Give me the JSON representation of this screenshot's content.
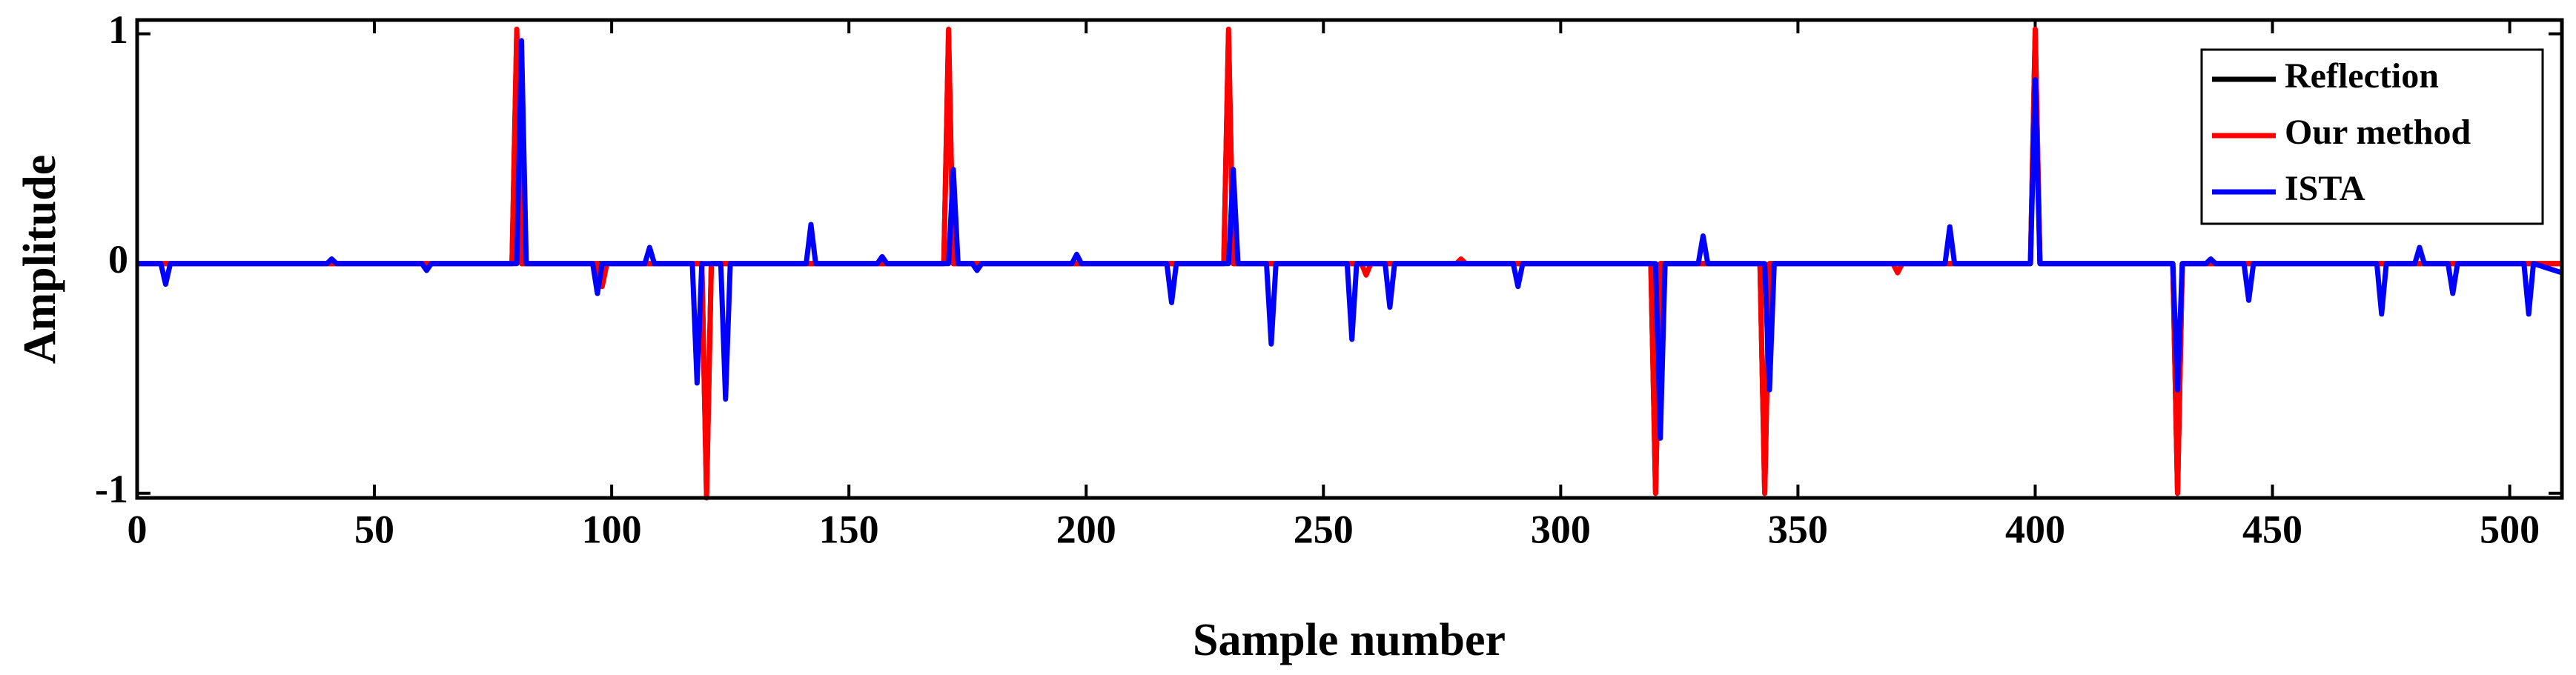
{
  "chart_data": {
    "type": "line",
    "xlabel": "Sample number",
    "ylabel": "Amplitude",
    "xlim": [
      0,
      511
    ],
    "ylim": [
      -1.02,
      1.06
    ],
    "xticks": [
      0,
      50,
      100,
      150,
      200,
      250,
      300,
      350,
      400,
      450,
      500
    ],
    "yticks": [
      -1,
      0,
      1
    ],
    "legend": "upper right",
    "series": [
      {
        "name": "Reflection",
        "color": "#000000",
        "x": [
          0,
          79,
          80,
          81,
          119,
          120,
          121,
          170,
          171,
          172,
          229,
          230,
          231,
          319,
          320,
          321,
          342,
          343,
          344,
          399,
          400,
          401,
          429,
          430,
          431,
          511
        ],
        "values": [
          0,
          0,
          1,
          0,
          0,
          -1,
          0,
          0,
          1,
          0,
          0,
          1,
          0,
          0,
          -1,
          0,
          0,
          -1,
          0,
          0,
          1,
          0,
          0,
          -1,
          0,
          0
        ]
      },
      {
        "name": "Our method",
        "color": "#ff0000",
        "x": [
          0,
          79,
          80,
          81,
          97,
          98,
          99,
          119,
          120,
          121,
          170,
          171,
          172,
          229,
          230,
          231,
          258,
          259,
          260,
          278,
          279,
          280,
          319,
          320,
          321,
          342,
          343,
          344,
          370,
          371,
          372,
          399,
          400,
          401,
          429,
          430,
          431,
          511
        ],
        "values": [
          0,
          0,
          1.02,
          0,
          0,
          -0.1,
          0,
          0,
          -1.02,
          0,
          0,
          1.02,
          0,
          0,
          1.02,
          0,
          0,
          -0.05,
          0,
          0,
          0.02,
          0,
          0,
          -1,
          0,
          0,
          -1,
          0,
          0,
          -0.04,
          0,
          0,
          1.02,
          0,
          0,
          -1,
          0,
          0
        ]
      },
      {
        "name": "ISTA",
        "color": "#0000ff",
        "x": [
          0,
          5,
          6,
          7,
          40,
          41,
          42,
          60,
          61,
          62,
          80,
          81,
          82,
          96,
          97,
          98,
          107,
          108,
          109,
          117,
          118,
          119,
          123,
          124,
          125,
          141,
          142,
          143,
          156,
          157,
          158,
          171,
          172,
          173,
          176,
          177,
          178,
          197,
          198,
          199,
          217,
          218,
          219,
          230,
          231,
          232,
          238,
          239,
          240,
          255,
          256,
          257,
          263,
          264,
          265,
          290,
          291,
          292,
          320,
          321,
          322,
          329,
          330,
          331,
          343,
          344,
          345,
          381,
          382,
          383,
          399,
          400,
          401,
          429,
          430,
          431,
          436,
          437,
          438,
          444,
          445,
          446,
          472,
          473,
          474,
          480,
          481,
          482,
          487,
          488,
          489,
          503,
          504,
          505,
          511
        ],
        "values": [
          0,
          0,
          -0.09,
          0,
          0,
          0.02,
          0,
          0,
          -0.03,
          0,
          0,
          0.97,
          0,
          0,
          -0.13,
          0,
          0,
          0.07,
          0,
          0,
          -0.52,
          0,
          0,
          -0.59,
          0,
          0,
          0.17,
          0,
          0,
          0.03,
          0,
          0,
          0.41,
          0,
          0,
          -0.03,
          0,
          0,
          0.04,
          0,
          0,
          -0.17,
          0,
          0,
          0.41,
          0,
          0,
          -0.35,
          0,
          0,
          -0.33,
          0,
          0,
          -0.19,
          0,
          0,
          -0.1,
          0,
          0,
          -0.76,
          0,
          0,
          0.12,
          0,
          0,
          -0.55,
          0,
          0,
          0.16,
          0,
          0,
          0.8,
          0,
          0,
          -0.55,
          0,
          0,
          0.02,
          0,
          0,
          -0.16,
          0,
          0,
          -0.22,
          0,
          0,
          0.07,
          0,
          0,
          -0.13,
          0,
          0,
          -0.22,
          0,
          -0.04
        ]
      }
    ]
  }
}
